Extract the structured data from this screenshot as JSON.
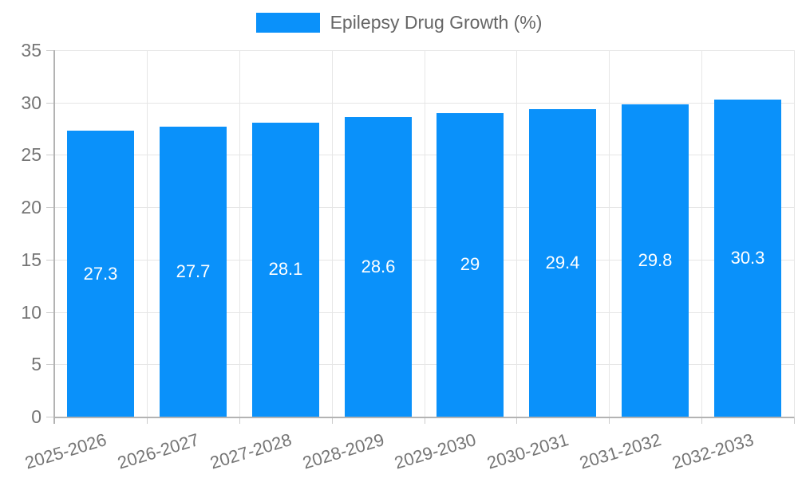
{
  "colors": {
    "bar": "#0a91fa",
    "grid": "#e6e6e6",
    "tick_mark": "#cccccc",
    "axis": "#b3b3b3",
    "tick_text": "#757575",
    "legend_text": "#666666",
    "value_text": "#ffffff",
    "background": "#ffffff"
  },
  "chart_data": {
    "type": "bar",
    "title": "",
    "xlabel": "",
    "ylabel": "",
    "categories": [
      "2025-2026",
      "2026-2027",
      "2027-2028",
      "2028-2029",
      "2029-2030",
      "2030-2031",
      "2031-2032",
      "2032-2033"
    ],
    "series": [
      {
        "name": "Epilepsy Drug Growth (%)",
        "values": [
          27.3,
          27.7,
          28.1,
          28.6,
          29,
          29.4,
          29.8,
          30.3
        ]
      }
    ],
    "value_labels": [
      "27.3",
      "27.7",
      "28.1",
      "28.6",
      "29",
      "29.4",
      "29.8",
      "30.3"
    ],
    "ylim": [
      0,
      35
    ],
    "yticks": [
      0,
      5,
      10,
      15,
      20,
      25,
      30,
      35
    ],
    "grid": true,
    "legend_position": "top",
    "bar_labels_position": "center-inside"
  }
}
